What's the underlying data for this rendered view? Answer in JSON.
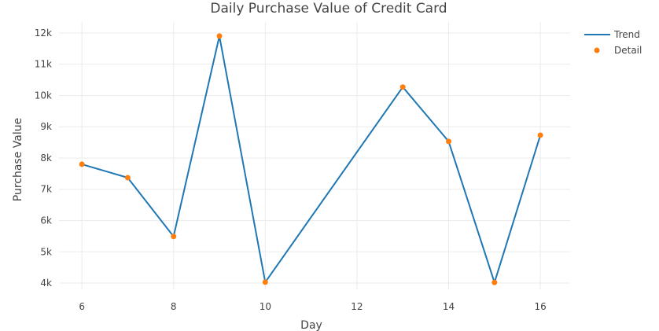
{
  "chart_data": {
    "type": "line",
    "title": "Daily Purchase Value of Credit Card",
    "xlabel": "Day",
    "ylabel": "Purchase Value",
    "xlim": [
      5.5,
      16.65
    ],
    "ylim": [
      3800,
      12350
    ],
    "x_ticks": [
      6,
      8,
      10,
      12,
      14,
      16
    ],
    "y_ticks": [
      4000,
      5000,
      6000,
      7000,
      8000,
      9000,
      10000,
      11000,
      12000
    ],
    "y_tick_labels": [
      "4k",
      "5k",
      "6k",
      "7k",
      "8k",
      "9k",
      "10k",
      "11k",
      "12k"
    ],
    "grid": true,
    "legend_position": "top-right",
    "series": [
      {
        "name": "Trend",
        "kind": "line",
        "color": "#1f77b4",
        "x": [
          6,
          7,
          8,
          9,
          10,
          13,
          14,
          15,
          16
        ],
        "y": [
          7800,
          7370,
          5490,
          11900,
          4030,
          10270,
          8530,
          4020,
          8730
        ]
      },
      {
        "name": "Detail",
        "kind": "markers",
        "color": "#ff7f0e",
        "x": [
          6,
          7,
          8,
          9,
          10,
          13,
          14,
          15,
          16
        ],
        "y": [
          7800,
          7370,
          5490,
          11900,
          4030,
          10270,
          8530,
          4020,
          8730
        ]
      }
    ]
  }
}
